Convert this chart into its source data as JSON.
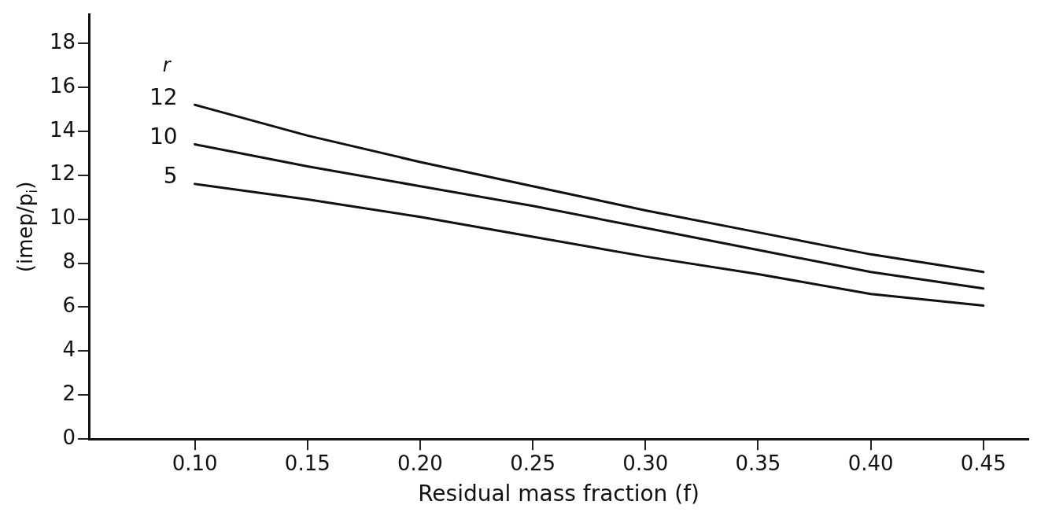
{
  "chart_data": {
    "type": "line",
    "xlabel": "Residual mass fraction (f)",
    "ylabel": "(imep/p$_{i}$)",
    "legend_title": "r",
    "x": [
      0.1,
      0.15,
      0.2,
      0.25,
      0.3,
      0.35,
      0.4,
      0.45
    ],
    "series": [
      {
        "name": "12",
        "color": "#111111",
        "values": [
          15.2,
          13.8,
          12.6,
          11.5,
          10.4,
          9.4,
          8.4,
          7.6
        ]
      },
      {
        "name": "10",
        "color": "#111111",
        "values": [
          13.4,
          12.4,
          11.5,
          10.6,
          9.6,
          8.6,
          7.6,
          6.85
        ]
      },
      {
        "name": "5",
        "color": "#111111",
        "values": [
          11.6,
          10.9,
          10.1,
          9.2,
          8.3,
          7.5,
          6.6,
          6.07
        ]
      }
    ],
    "xlim": [
      0.053,
      0.47
    ],
    "xticks": [
      {
        "value": 0.1,
        "label": "0.10"
      },
      0.15,
      {
        "value": 0.2,
        "label": "0.20"
      },
      0.25,
      {
        "value": 0.3,
        "label": "0.30"
      },
      0.35,
      {
        "value": 0.4,
        "label": "0.40"
      },
      0.45
    ],
    "ylim": [
      0,
      19.3
    ],
    "yticks": [
      0,
      2,
      4,
      6,
      8,
      10,
      12,
      14,
      16,
      18
    ],
    "grid": false,
    "legend": false,
    "marker": "none",
    "line_style": "solid"
  }
}
